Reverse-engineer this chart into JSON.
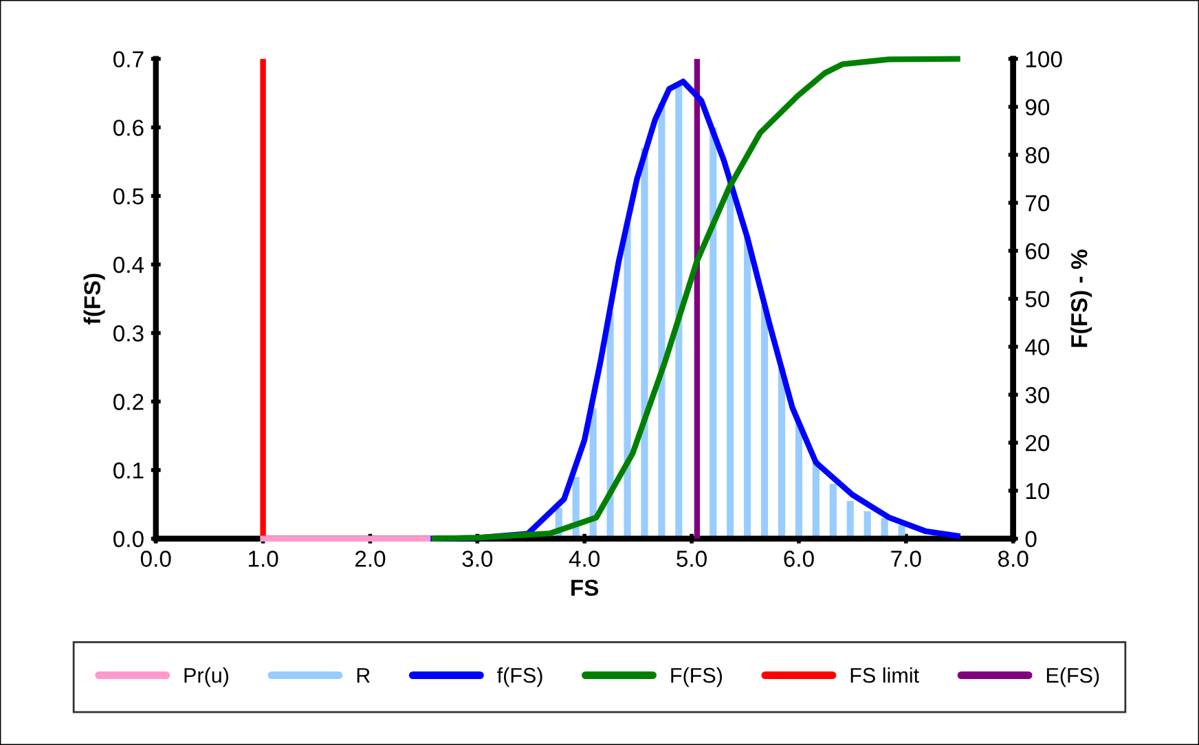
{
  "chart_data": {
    "type": "line",
    "xlabel": "FS",
    "ylabel": "f(FS)",
    "y2label": "F(FS) - %",
    "series": [
      {
        "name": "Pr(u)",
        "color": "#ff99cc",
        "x": [
          1.0,
          2.6
        ],
        "values": [
          0,
          0
        ]
      },
      {
        "name": "R",
        "color": "#99ccff",
        "type": "bar",
        "x": [
          3.76,
          3.92,
          4.08,
          4.24,
          4.4,
          4.56,
          4.72,
          4.88,
          5.04,
          5.2,
          5.36,
          5.52,
          5.68,
          5.84,
          6.0,
          6.16,
          6.32,
          6.48,
          6.64,
          6.8,
          6.96
        ],
        "values": [
          0.045,
          0.09,
          0.19,
          0.33,
          0.46,
          0.57,
          0.635,
          0.665,
          null,
          0.6,
          0.52,
          0.44,
          0.34,
          0.25,
          0.17,
          0.115,
          0.08,
          0.055,
          0.04,
          0.03,
          0.02
        ]
      },
      {
        "name": "f(FS)",
        "color": "#0000ff",
        "x": [
          2.59,
          3.0,
          3.47,
          3.81,
          4.0,
          4.15,
          4.32,
          4.49,
          4.66,
          4.79,
          4.92,
          5.09,
          5.3,
          5.52,
          5.73,
          5.94,
          6.16,
          6.5,
          6.84,
          7.18,
          7.48
        ],
        "values": [
          0,
          0.001,
          0.007,
          0.058,
          0.144,
          0.259,
          0.405,
          0.525,
          0.612,
          0.656,
          0.667,
          0.639,
          0.552,
          0.439,
          0.311,
          0.191,
          0.111,
          0.064,
          0.031,
          0.011,
          0.004
        ]
      },
      {
        "name": "F(FS)",
        "color": "#008000",
        "axis": "y2",
        "x": [
          2.6,
          3.0,
          3.68,
          4.11,
          4.45,
          4.75,
          5.05,
          5.35,
          5.64,
          5.99,
          6.24,
          6.41,
          6.84,
          7.48
        ],
        "values": [
          0,
          0.2,
          1.1,
          4.4,
          17.8,
          36.8,
          57.9,
          73.2,
          84.6,
          92.3,
          97.0,
          98.9,
          99.9,
          100
        ]
      }
    ],
    "ref_lines": [
      {
        "axis": "x",
        "value": 1.0,
        "label": "FS limit",
        "color": "#ff0000"
      },
      {
        "axis": "x",
        "value": 5.05,
        "label": "E(FS)",
        "color": "#800080"
      }
    ],
    "xlim": [
      0,
      8
    ],
    "ylim": [
      0,
      0.7
    ],
    "y2lim": [
      0,
      100
    ],
    "xticks": [
      {
        "value": 0,
        "label": "0.0"
      },
      {
        "value": 1,
        "label": "1.0"
      },
      {
        "value": 2,
        "label": "2.0"
      },
      {
        "value": 3,
        "label": "3.0"
      },
      {
        "value": 4,
        "label": "4.0"
      },
      {
        "value": 5,
        "label": "5.0"
      },
      {
        "value": 6,
        "label": "6.0"
      },
      {
        "value": 7,
        "label": "7.0"
      },
      {
        "value": 8,
        "label": "8.0"
      }
    ],
    "yticks": [
      {
        "value": 0,
        "label": "0.0"
      },
      0.1,
      0.2,
      0.3,
      0.4,
      0.5,
      0.6,
      0.7
    ],
    "y2ticks": [
      0,
      10,
      20,
      30,
      40,
      50,
      60,
      70,
      80,
      90,
      100
    ],
    "legend": "bottom",
    "grid": false,
    "marker": "none",
    "line_style": "solid"
  }
}
